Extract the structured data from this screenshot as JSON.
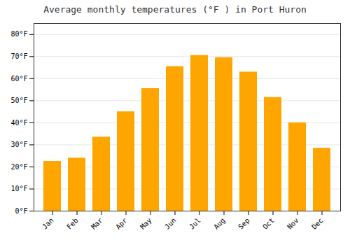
{
  "chart_data": {
    "type": "bar",
    "title": "Average monthly temperatures (°F ) in Port Huron",
    "categories": [
      "Jan",
      "Feb",
      "Mar",
      "Apr",
      "May",
      "Jun",
      "Jul",
      "Aug",
      "Sep",
      "Oct",
      "Nov",
      "Dec"
    ],
    "values": [
      22.5,
      24.0,
      33.5,
      45.0,
      55.5,
      65.5,
      70.5,
      69.5,
      63.0,
      51.5,
      40.0,
      28.5
    ],
    "color": "#FFA500",
    "ylim": [
      0,
      85
    ],
    "yticks": [
      {
        "value": 0,
        "label": "0°F"
      },
      {
        "value": 10,
        "label": "10°F"
      },
      {
        "value": 20,
        "label": "20°F"
      },
      {
        "value": 30,
        "label": "30°F"
      },
      {
        "value": 40,
        "label": "40°F"
      },
      {
        "value": 50,
        "label": "50°F"
      },
      {
        "value": 60,
        "label": "60°F"
      },
      {
        "value": 70,
        "label": "70°F"
      },
      {
        "value": 80,
        "label": "80°F"
      }
    ],
    "grid": true
  }
}
